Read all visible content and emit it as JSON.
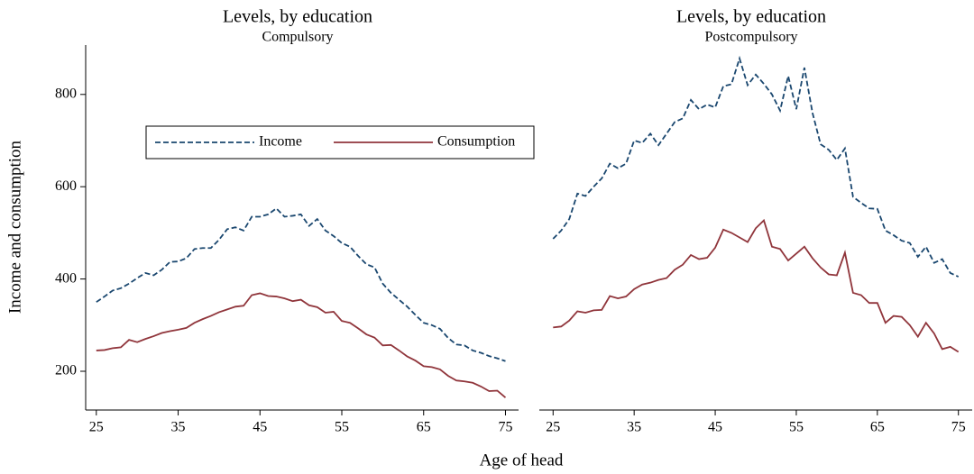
{
  "x_label": "Age of head",
  "y_label": "Income and consumption",
  "chart_data": [
    {
      "type": "line",
      "title": "Levels, by education",
      "subtitle": "Compulsory",
      "x": [
        25,
        26,
        27,
        28,
        29,
        30,
        31,
        32,
        33,
        34,
        35,
        36,
        37,
        38,
        39,
        40,
        41,
        42,
        43,
        44,
        45,
        46,
        47,
        48,
        49,
        50,
        51,
        52,
        53,
        54,
        55,
        56,
        57,
        58,
        59,
        60,
        61,
        62,
        63,
        64,
        65,
        66,
        67,
        68,
        69,
        70,
        71,
        72,
        73,
        74,
        75
      ],
      "series": [
        {
          "name": "Income",
          "color": "#1a476f",
          "line_style": "dashed",
          "values": [
            350,
            362,
            375,
            380,
            390,
            402,
            413,
            408,
            420,
            437,
            438,
            445,
            465,
            467,
            467,
            485,
            508,
            512,
            505,
            535,
            535,
            540,
            553,
            535,
            537,
            540,
            515,
            530,
            505,
            493,
            478,
            470,
            450,
            432,
            425,
            390,
            370,
            355,
            340,
            322,
            305,
            300,
            292,
            272,
            258,
            256,
            245,
            240,
            233,
            228,
            222
          ]
        },
        {
          "name": "Consumption",
          "color": "#90353b",
          "line_style": "solid",
          "values": [
            245,
            246,
            250,
            252,
            268,
            263,
            270,
            276,
            283,
            287,
            290,
            294,
            305,
            313,
            320,
            328,
            334,
            340,
            342,
            365,
            369,
            363,
            362,
            358,
            352,
            355,
            343,
            339,
            327,
            329,
            309,
            305,
            293,
            280,
            273,
            256,
            257,
            245,
            232,
            223,
            211,
            209,
            204,
            190,
            180,
            178,
            175,
            167,
            157,
            158,
            143
          ]
        }
      ],
      "xlim": [
        23.7,
        76.6
      ],
      "xticks": [
        25,
        35,
        45,
        55,
        65,
        75
      ],
      "ylim": [
        116,
        907
      ],
      "yticks": [
        200,
        400,
        600,
        800
      ],
      "legend": "upper-center"
    },
    {
      "type": "line",
      "title": "Levels, by education",
      "subtitle": "Postcompulsory",
      "x": [
        25,
        26,
        27,
        28,
        29,
        30,
        31,
        32,
        33,
        34,
        35,
        36,
        37,
        38,
        39,
        40,
        41,
        42,
        43,
        44,
        45,
        46,
        47,
        48,
        49,
        50,
        51,
        52,
        53,
        54,
        55,
        56,
        57,
        58,
        59,
        60,
        61,
        62,
        63,
        64,
        65,
        66,
        67,
        68,
        69,
        70,
        71,
        72,
        73,
        74,
        75
      ],
      "series": [
        {
          "color": "#1a476f",
          "line_style": "dashed",
          "values": [
            487,
            505,
            530,
            585,
            580,
            600,
            618,
            650,
            640,
            650,
            700,
            695,
            715,
            690,
            715,
            740,
            748,
            788,
            768,
            778,
            772,
            818,
            822,
            878,
            820,
            843,
            823,
            800,
            765,
            840,
            768,
            858,
            760,
            692,
            680,
            658,
            683,
            578,
            565,
            553,
            552,
            505,
            495,
            483,
            478,
            448,
            470,
            435,
            443,
            413,
            405
          ]
        },
        {
          "color": "#90353b",
          "line_style": "solid",
          "values": [
            295,
            297,
            310,
            330,
            327,
            332,
            333,
            363,
            358,
            362,
            378,
            388,
            392,
            398,
            402,
            420,
            431,
            452,
            443,
            446,
            468,
            507,
            500,
            490,
            480,
            510,
            527,
            470,
            465,
            440,
            455,
            470,
            445,
            425,
            410,
            408,
            457,
            370,
            365,
            348,
            348,
            305,
            320,
            318,
            300,
            275,
            305,
            282,
            248,
            253,
            242
          ]
        }
      ],
      "xlim": [
        23.3,
        76.7
      ],
      "xticks": [
        25,
        35,
        45,
        55,
        65,
        75
      ],
      "ylim": [
        116,
        907
      ]
    }
  ]
}
